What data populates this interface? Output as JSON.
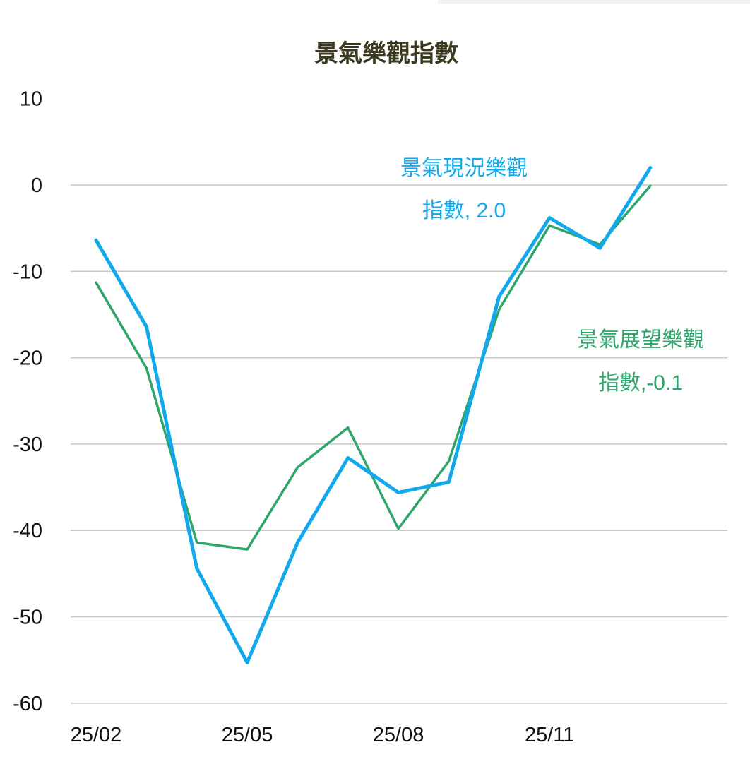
{
  "chart_data": {
    "type": "line",
    "title": "景氣樂觀指數",
    "xlabel": "",
    "ylabel": "",
    "x": [
      "25/02",
      "25/03",
      "25/04",
      "25/05",
      "25/06",
      "25/07",
      "25/08",
      "25/09",
      "25/10",
      "25/11",
      "25/12",
      "26/01"
    ],
    "x_tick_labels": [
      "25/02",
      "25/05",
      "25/08",
      "25/11"
    ],
    "y_tick_labels": [
      "10",
      "0",
      "-10",
      "-20",
      "-30",
      "-40",
      "-50",
      "-60"
    ],
    "ylim": [
      -60,
      10
    ],
    "grid": true,
    "series": [
      {
        "name": "景氣現況樂觀指數",
        "color": "#12a9ec",
        "values": [
          -6.4,
          -16.4,
          -44.4,
          -55.3,
          -41.4,
          -31.6,
          -35.6,
          -34.4,
          -12.9,
          -3.8,
          -7.3,
          2.0
        ],
        "annotation": [
          "景氣現況樂觀",
          "指數, 2.0"
        ]
      },
      {
        "name": "景氣展望樂觀指數",
        "color": "#2ea66a",
        "values": [
          -11.3,
          -21.2,
          -41.4,
          -42.2,
          -32.7,
          -28.1,
          -39.8,
          -32.0,
          -14.4,
          -4.7,
          -6.9,
          -0.1
        ],
        "annotation": [
          "景氣展望樂觀",
          "指數,-0.1"
        ]
      }
    ]
  }
}
